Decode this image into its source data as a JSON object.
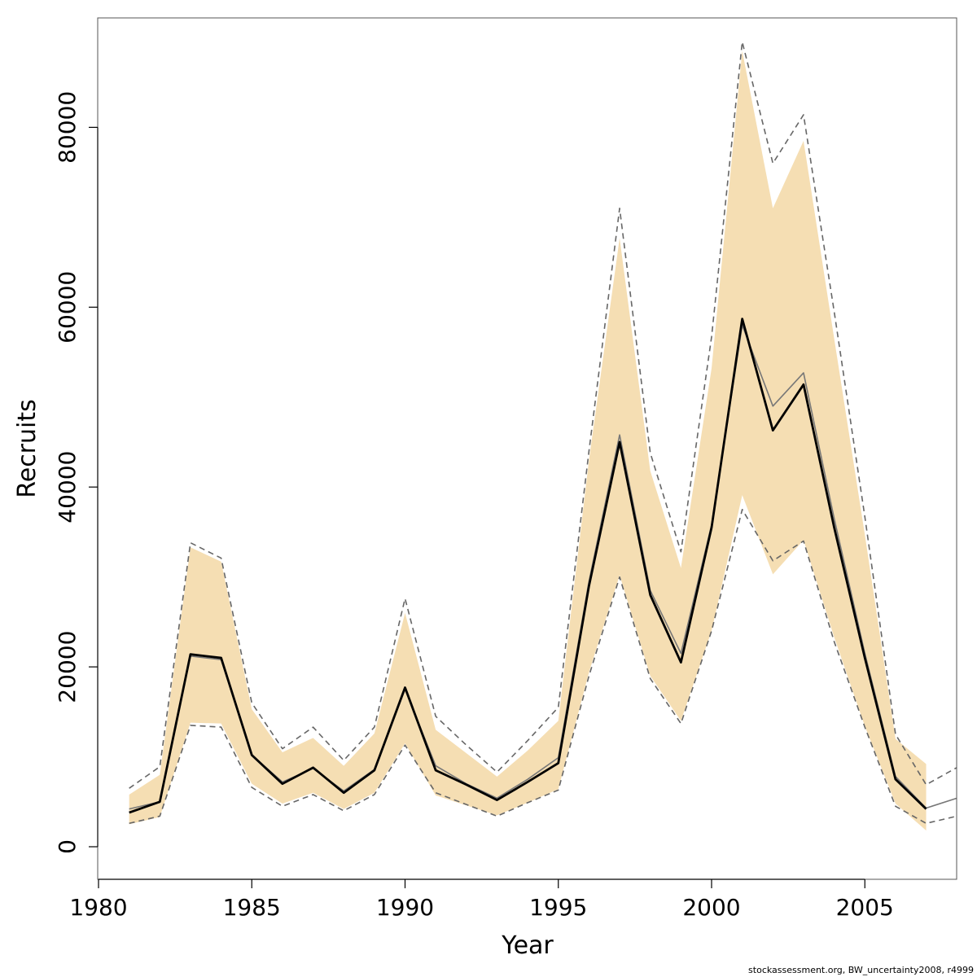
{
  "chart_data": {
    "type": "area",
    "title": "",
    "xlabel": "Year",
    "ylabel": "Recruits",
    "xlim": [
      1981,
      2008
    ],
    "ylim": [
      -3500,
      92000
    ],
    "x_ticks": [
      1980,
      1985,
      1990,
      1995,
      2000,
      2005
    ],
    "y_ticks": [
      0,
      20000,
      40000,
      60000,
      80000
    ],
    "grid": false,
    "legend": "none",
    "x": [
      1981,
      1982,
      1983,
      1984,
      1985,
      1986,
      1987,
      1988,
      1989,
      1990,
      1991,
      1992,
      1993,
      1994,
      1995,
      1996,
      1997,
      1998,
      1999,
      2000,
      2001,
      2002,
      2003,
      2004,
      2005,
      2006,
      2007
    ],
    "series": [
      {
        "role": "median",
        "values": [
          3800,
          5000,
          21400,
          21000,
          10200,
          7000,
          8800,
          6000,
          8500,
          17700,
          8500,
          6900,
          5200,
          7200,
          9300,
          29000,
          45000,
          28000,
          20500,
          35500,
          58700,
          46300,
          51400,
          35500,
          21000,
          7500,
          4200
        ]
      },
      {
        "role": "upper-band",
        "values": [
          5800,
          8000,
          33300,
          31700,
          15300,
          10500,
          12100,
          9000,
          12600,
          26000,
          13000,
          10400,
          7800,
          10700,
          14000,
          43000,
          67700,
          41800,
          31000,
          53200,
          88500,
          71000,
          78500,
          56500,
          34700,
          12000,
          9200
        ]
      },
      {
        "role": "lower-band",
        "values": [
          2500,
          3300,
          13800,
          13700,
          7000,
          4800,
          6000,
          4200,
          6000,
          11500,
          5700,
          4600,
          3500,
          4900,
          6400,
          19400,
          30200,
          19000,
          14000,
          24000,
          39100,
          30300,
          34100,
          23300,
          13400,
          4800,
          1800
        ]
      },
      {
        "role": "point-estimate",
        "x": [
          1981,
          1982,
          1983,
          1984,
          1985,
          1986,
          1987,
          1988,
          1989,
          1990,
          1991,
          1992,
          1993,
          1994,
          1995,
          1996,
          1997,
          1998,
          1999,
          2000,
          2001,
          2002,
          2003,
          2004,
          2005,
          2006,
          2007,
          2008
        ],
        "values": [
          4200,
          5000,
          21200,
          20800,
          10200,
          7200,
          8700,
          6200,
          8600,
          17500,
          9000,
          7000,
          5400,
          7500,
          9900,
          29500,
          45800,
          28500,
          21500,
          35800,
          58000,
          49000,
          52700,
          36500,
          21500,
          7800,
          4300,
          5400
        ]
      },
      {
        "role": "upper-dashed",
        "x": [
          1981,
          1982,
          1983,
          1984,
          1985,
          1986,
          1987,
          1988,
          1989,
          1990,
          1991,
          1992,
          1993,
          1994,
          1995,
          1996,
          1997,
          1998,
          1999,
          2000,
          2001,
          2002,
          2003,
          2004,
          2005,
          2006,
          2007,
          2008
        ],
        "values": [
          6500,
          8900,
          33800,
          32100,
          16000,
          10900,
          13300,
          9600,
          13300,
          27600,
          14500,
          11300,
          8300,
          11800,
          15500,
          44000,
          71000,
          43800,
          32800,
          56700,
          89500,
          76000,
          81400,
          59500,
          36700,
          12500,
          6900,
          8800
        ]
      },
      {
        "role": "lower-dashed",
        "x": [
          1981,
          1982,
          1983,
          1984,
          1985,
          1986,
          1987,
          1988,
          1989,
          1990,
          1991,
          1992,
          1993,
          1994,
          1995,
          1996,
          1997,
          1998,
          1999,
          2000,
          2001,
          2002,
          2003,
          2004,
          2005,
          2006,
          2007,
          2008
        ],
        "values": [
          2600,
          3400,
          13500,
          13300,
          6600,
          4500,
          5800,
          4000,
          5800,
          11300,
          6000,
          4700,
          3400,
          4900,
          6300,
          19000,
          30000,
          18700,
          13700,
          24000,
          37500,
          31800,
          34000,
          22800,
          13300,
          4500,
          2600,
          3400
        ]
      }
    ],
    "colors": {
      "band": "#F5DEB3",
      "median": "#000000",
      "point_estimate": "#777777",
      "dashed": "#666666",
      "axis": "#000000"
    }
  },
  "footer": {
    "credit": "stockassessment.org, BW_uncertainty2008, r4999"
  }
}
